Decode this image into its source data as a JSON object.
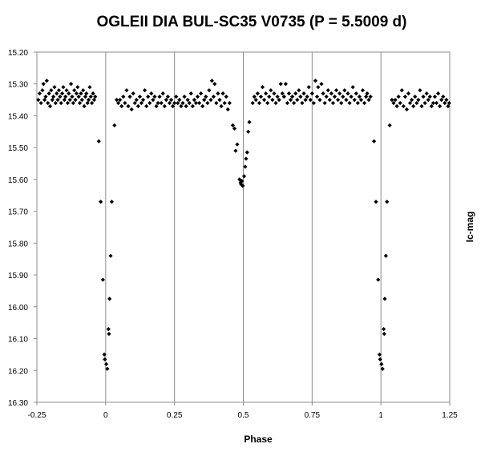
{
  "chart_data": {
    "type": "scatter",
    "title": "OGLEII DIA BUL-SC35  V0735 (P = 5.5009 d)",
    "xlabel": "Phase",
    "ylabel": "Ic-mag",
    "xlim": [
      -0.25,
      1.25
    ],
    "ylim": [
      15.2,
      16.3
    ],
    "y_inverted": true,
    "grid": "vertical",
    "legend": "none",
    "marker": "diamond",
    "marker_color": "#000000",
    "x_ticks": [
      -0.25,
      0,
      0.25,
      0.5,
      0.75,
      1,
      1.25
    ],
    "x_tick_labels": [
      "-0.25",
      "0",
      "0.25",
      "0.5",
      "0.75",
      "1",
      "1.25"
    ],
    "y_ticks": [
      15.2,
      15.3,
      15.4,
      15.5,
      15.6,
      15.7,
      15.8,
      15.9,
      16.0,
      16.1,
      16.2,
      16.3
    ],
    "y_tick_labels": [
      "15.20",
      "15.30",
      "15.40",
      "15.50",
      "15.60",
      "15.70",
      "15.80",
      "15.90",
      "16.00",
      "16.10",
      "16.20",
      "16.30"
    ],
    "series": [
      {
        "points": [
          [
            -0.245,
            15.35
          ],
          [
            -0.24,
            15.33
          ],
          [
            -0.235,
            15.36
          ],
          [
            -0.23,
            15.32
          ],
          [
            -0.226,
            15.3
          ],
          [
            -0.222,
            15.35
          ],
          [
            -0.218,
            15.34
          ],
          [
            -0.214,
            15.29
          ],
          [
            -0.21,
            15.36
          ],
          [
            -0.206,
            15.33
          ],
          [
            -0.202,
            15.37
          ],
          [
            -0.198,
            15.32
          ],
          [
            -0.194,
            15.35
          ],
          [
            -0.19,
            15.34
          ],
          [
            -0.186,
            15.31
          ],
          [
            -0.182,
            15.36
          ],
          [
            -0.178,
            15.33
          ],
          [
            -0.174,
            15.35
          ],
          [
            -0.17,
            15.32
          ],
          [
            -0.166,
            15.34
          ],
          [
            -0.162,
            15.36
          ],
          [
            -0.158,
            15.33
          ],
          [
            -0.154,
            15.31
          ],
          [
            -0.15,
            15.35
          ],
          [
            -0.146,
            15.34
          ],
          [
            -0.142,
            15.32
          ],
          [
            -0.138,
            15.36
          ],
          [
            -0.134,
            15.33
          ],
          [
            -0.13,
            15.35
          ],
          [
            -0.126,
            15.3
          ],
          [
            -0.122,
            15.34
          ],
          [
            -0.118,
            15.36
          ],
          [
            -0.114,
            15.32
          ],
          [
            -0.11,
            15.35
          ],
          [
            -0.106,
            15.33
          ],
          [
            -0.102,
            15.31
          ],
          [
            -0.098,
            15.34
          ],
          [
            -0.094,
            15.36
          ],
          [
            -0.09,
            15.33
          ],
          [
            -0.086,
            15.35
          ],
          [
            -0.082,
            15.32
          ],
          [
            -0.078,
            15.37
          ],
          [
            -0.074,
            15.34
          ],
          [
            -0.07,
            15.33
          ],
          [
            -0.066,
            15.36
          ],
          [
            -0.062,
            15.35
          ],
          [
            -0.058,
            15.31
          ],
          [
            -0.054,
            15.34
          ],
          [
            -0.05,
            15.36
          ],
          [
            -0.046,
            15.33
          ],
          [
            -0.042,
            15.35
          ],
          [
            -0.038,
            15.34
          ],
          [
            -0.025,
            15.48
          ],
          [
            -0.018,
            15.67
          ],
          [
            -0.01,
            15.915
          ],
          [
            -0.005,
            16.15
          ],
          [
            -0.003,
            16.165
          ],
          [
            0.002,
            16.18
          ],
          [
            0.006,
            16.195
          ],
          [
            0.01,
            16.07
          ],
          [
            0.012,
            16.085
          ],
          [
            0.014,
            15.975
          ],
          [
            0.018,
            15.84
          ],
          [
            0.022,
            15.67
          ],
          [
            0.032,
            15.43
          ],
          [
            0.04,
            15.35
          ],
          [
            0.046,
            15.36
          ],
          [
            0.052,
            15.35
          ],
          [
            0.058,
            15.37
          ],
          [
            0.064,
            15.34
          ],
          [
            0.07,
            15.36
          ],
          [
            0.076,
            15.32
          ],
          [
            0.082,
            15.37
          ],
          [
            0.088,
            15.34
          ],
          [
            0.094,
            15.38
          ],
          [
            0.1,
            15.33
          ],
          [
            0.106,
            15.36
          ],
          [
            0.112,
            15.35
          ],
          [
            0.118,
            15.37
          ],
          [
            0.124,
            15.34
          ],
          [
            0.13,
            15.36
          ],
          [
            0.136,
            15.35
          ],
          [
            0.142,
            15.32
          ],
          [
            0.148,
            15.37
          ],
          [
            0.154,
            15.34
          ],
          [
            0.16,
            15.36
          ],
          [
            0.166,
            15.33
          ],
          [
            0.172,
            15.35
          ],
          [
            0.178,
            15.34
          ],
          [
            0.184,
            15.37
          ],
          [
            0.19,
            15.36
          ],
          [
            0.196,
            15.34
          ],
          [
            0.202,
            15.36
          ],
          [
            0.208,
            15.33
          ],
          [
            0.214,
            15.37
          ],
          [
            0.22,
            15.35
          ],
          [
            0.226,
            15.34
          ],
          [
            0.232,
            15.36
          ],
          [
            0.238,
            15.35
          ],
          [
            0.244,
            15.37
          ],
          [
            0.25,
            15.36
          ],
          [
            0.256,
            15.34
          ],
          [
            0.262,
            15.36
          ],
          [
            0.268,
            15.35
          ],
          [
            0.274,
            15.37
          ],
          [
            0.28,
            15.36
          ],
          [
            0.286,
            15.34
          ],
          [
            0.292,
            15.37
          ],
          [
            0.298,
            15.35
          ],
          [
            0.304,
            15.36
          ],
          [
            0.31,
            15.33
          ],
          [
            0.316,
            15.37
          ],
          [
            0.322,
            15.35
          ],
          [
            0.328,
            15.36
          ],
          [
            0.334,
            15.34
          ],
          [
            0.34,
            15.36
          ],
          [
            0.346,
            15.33
          ],
          [
            0.352,
            15.37
          ],
          [
            0.358,
            15.35
          ],
          [
            0.364,
            15.34
          ],
          [
            0.37,
            15.36
          ],
          [
            0.376,
            15.32
          ],
          [
            0.382,
            15.35
          ],
          [
            0.386,
            15.29
          ],
          [
            0.392,
            15.34
          ],
          [
            0.396,
            15.3
          ],
          [
            0.402,
            15.36
          ],
          [
            0.408,
            15.33
          ],
          [
            0.414,
            15.35
          ],
          [
            0.42,
            15.37
          ],
          [
            0.426,
            15.33
          ],
          [
            0.432,
            15.36
          ],
          [
            0.438,
            15.34
          ],
          [
            0.444,
            15.38
          ],
          [
            0.45,
            15.36
          ],
          [
            0.462,
            15.43
          ],
          [
            0.468,
            15.44
          ],
          [
            0.472,
            15.51
          ],
          [
            0.478,
            15.49
          ],
          [
            0.486,
            15.6
          ],
          [
            0.49,
            15.61
          ],
          [
            0.492,
            15.615
          ],
          [
            0.495,
            15.605
          ],
          [
            0.498,
            15.62
          ],
          [
            0.503,
            15.59
          ],
          [
            0.507,
            15.56
          ],
          [
            0.51,
            15.535
          ],
          [
            0.514,
            15.515
          ],
          [
            0.518,
            15.45
          ],
          [
            0.522,
            15.42
          ],
          [
            0.534,
            15.36
          ],
          [
            0.54,
            15.34
          ],
          [
            0.546,
            15.35
          ],
          [
            0.552,
            15.33
          ],
          [
            0.558,
            15.36
          ],
          [
            0.564,
            15.34
          ],
          [
            0.57,
            15.31
          ],
          [
            0.576,
            15.35
          ],
          [
            0.582,
            15.33
          ],
          [
            0.588,
            15.36
          ],
          [
            0.594,
            15.34
          ],
          [
            0.6,
            15.32
          ],
          [
            0.606,
            15.35
          ],
          [
            0.612,
            15.33
          ],
          [
            0.618,
            15.36
          ],
          [
            0.624,
            15.34
          ],
          [
            0.63,
            15.35
          ],
          [
            0.636,
            15.3
          ],
          [
            0.642,
            15.33
          ],
          [
            0.648,
            15.34
          ],
          [
            0.654,
            15.3
          ],
          [
            0.66,
            15.36
          ],
          [
            0.666,
            15.33
          ],
          [
            0.672,
            15.35
          ],
          [
            0.678,
            15.34
          ],
          [
            0.684,
            15.36
          ],
          [
            0.69,
            15.33
          ],
          [
            0.696,
            15.35
          ],
          [
            0.702,
            15.32
          ],
          [
            0.708,
            15.34
          ],
          [
            0.714,
            15.36
          ],
          [
            0.72,
            15.33
          ],
          [
            0.726,
            15.35
          ],
          [
            0.732,
            15.34
          ],
          [
            0.738,
            15.31
          ],
          [
            0.744,
            15.35
          ],
          [
            0.75,
            15.33
          ],
          [
            0.756,
            15.36
          ],
          [
            0.762,
            15.29
          ],
          [
            0.768,
            15.34
          ],
          [
            0.772,
            15.31
          ],
          [
            0.778,
            15.35
          ],
          [
            0.784,
            15.3
          ],
          [
            0.79,
            15.33
          ],
          [
            0.796,
            15.36
          ],
          [
            0.802,
            15.34
          ],
          [
            0.808,
            15.32
          ],
          [
            0.814,
            15.35
          ],
          [
            0.82,
            15.33
          ],
          [
            0.826,
            15.36
          ],
          [
            0.832,
            15.34
          ],
          [
            0.838,
            15.32
          ],
          [
            0.844,
            15.35
          ],
          [
            0.85,
            15.33
          ],
          [
            0.856,
            15.36
          ],
          [
            0.862,
            15.34
          ],
          [
            0.868,
            15.32
          ],
          [
            0.874,
            15.35
          ],
          [
            0.88,
            15.33
          ],
          [
            0.886,
            15.36
          ],
          [
            0.892,
            15.34
          ],
          [
            0.898,
            15.31
          ],
          [
            0.904,
            15.35
          ],
          [
            0.91,
            15.33
          ],
          [
            0.916,
            15.36
          ],
          [
            0.922,
            15.34
          ],
          [
            0.928,
            15.35
          ],
          [
            0.934,
            15.32
          ],
          [
            0.94,
            15.36
          ],
          [
            0.946,
            15.34
          ],
          [
            0.95,
            15.33
          ],
          [
            0.956,
            15.35
          ],
          [
            0.962,
            15.34
          ],
          [
            0.975,
            15.48
          ],
          [
            0.982,
            15.67
          ],
          [
            0.99,
            15.915
          ],
          [
            0.995,
            16.15
          ],
          [
            0.997,
            16.165
          ],
          [
            1.002,
            16.18
          ],
          [
            1.006,
            16.195
          ],
          [
            1.01,
            16.07
          ],
          [
            1.012,
            16.085
          ],
          [
            1.014,
            15.975
          ],
          [
            1.018,
            15.84
          ],
          [
            1.022,
            15.67
          ],
          [
            1.032,
            15.43
          ],
          [
            1.04,
            15.35
          ],
          [
            1.046,
            15.36
          ],
          [
            1.052,
            15.35
          ],
          [
            1.058,
            15.37
          ],
          [
            1.064,
            15.34
          ],
          [
            1.07,
            15.36
          ],
          [
            1.076,
            15.32
          ],
          [
            1.082,
            15.37
          ],
          [
            1.088,
            15.34
          ],
          [
            1.094,
            15.38
          ],
          [
            1.1,
            15.33
          ],
          [
            1.106,
            15.36
          ],
          [
            1.112,
            15.35
          ],
          [
            1.118,
            15.37
          ],
          [
            1.124,
            15.34
          ],
          [
            1.13,
            15.36
          ],
          [
            1.136,
            15.35
          ],
          [
            1.142,
            15.32
          ],
          [
            1.148,
            15.37
          ],
          [
            1.154,
            15.34
          ],
          [
            1.16,
            15.36
          ],
          [
            1.166,
            15.33
          ],
          [
            1.172,
            15.35
          ],
          [
            1.178,
            15.34
          ],
          [
            1.184,
            15.37
          ],
          [
            1.19,
            15.36
          ],
          [
            1.196,
            15.34
          ],
          [
            1.202,
            15.36
          ],
          [
            1.208,
            15.33
          ],
          [
            1.214,
            15.37
          ],
          [
            1.22,
            15.35
          ],
          [
            1.226,
            15.34
          ],
          [
            1.232,
            15.36
          ],
          [
            1.238,
            15.35
          ],
          [
            1.244,
            15.37
          ],
          [
            1.248,
            15.36
          ]
        ]
      }
    ]
  }
}
